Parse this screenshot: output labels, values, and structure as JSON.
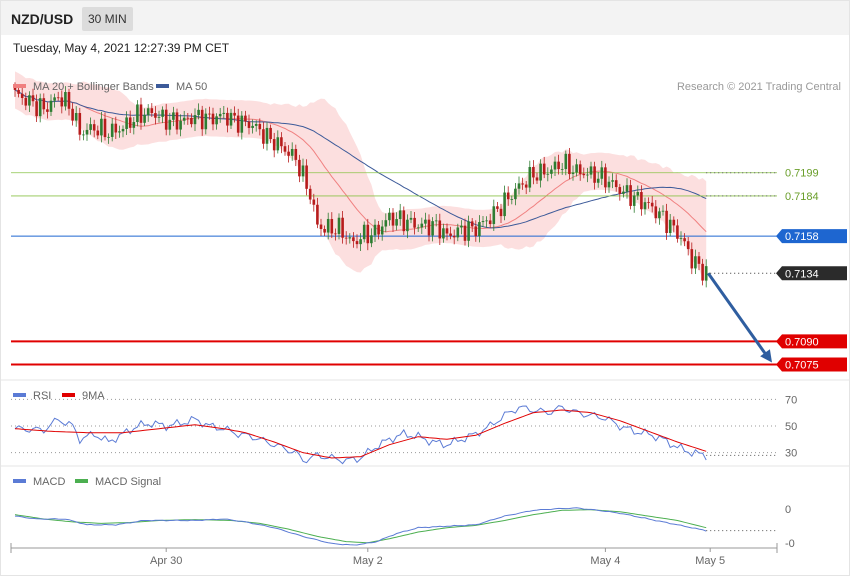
{
  "header": {
    "symbol": "NZD/USD",
    "timeframe": "30 MIN",
    "datetime": "Tuesday, May 4, 2021 12:27:39 PM CET"
  },
  "colors": {
    "ma20": "#f08080",
    "ma50": "#3c5a99",
    "bands": "#fcd9d9",
    "bull": "#2e7d32",
    "bear": "#b71c1c",
    "green_line": "#8bc34a",
    "blue_line": "#1e66d0",
    "red_line": "#e00000",
    "arrow": "#2f5ea0",
    "rsi": "#5b7bd5",
    "rsi_ma": "#e00000",
    "macd": "#5b7bd5",
    "macd_signal": "#4caf50"
  },
  "chart_data": [
    {
      "type": "candlestick",
      "legend": [
        {
          "label": "MA 20 + Bollinger Bands",
          "color": "#f08080"
        },
        {
          "label": "MA 50",
          "color": "#3c5a99"
        }
      ],
      "credit": "Research © 2021 Trading Central",
      "x_ticks": [
        "Apr 30",
        "May 2",
        "May 4",
        "May 5"
      ],
      "ylim": [
        0.7065,
        0.7268
      ],
      "levels": [
        {
          "value": 0.7199,
          "label": "0.7199",
          "style": "green-thin"
        },
        {
          "value": 0.7184,
          "label": "0.7184",
          "style": "green-thin"
        },
        {
          "value": 0.7158,
          "label": "0.7158",
          "style": "blue"
        },
        {
          "value": 0.7134,
          "label": "0.7134",
          "style": "current"
        },
        {
          "value": 0.709,
          "label": "0.7090",
          "style": "red"
        },
        {
          "value": 0.7075,
          "label": "0.7075",
          "style": "red"
        }
      ],
      "forecast_arrow": {
        "from": 0.7134,
        "to": 0.7075
      },
      "close_anchors": [
        [
          0,
          0.725
        ],
        [
          4,
          0.7245
        ],
        [
          8,
          0.724
        ],
        [
          12,
          0.7248
        ],
        [
          14,
          0.7245
        ],
        [
          16,
          0.7238
        ],
        [
          18,
          0.7225
        ],
        [
          22,
          0.7228
        ],
        [
          26,
          0.7225
        ],
        [
          30,
          0.7228
        ],
        [
          34,
          0.7236
        ],
        [
          38,
          0.7238
        ],
        [
          42,
          0.7233
        ],
        [
          46,
          0.7232
        ],
        [
          50,
          0.7235
        ],
        [
          54,
          0.7234
        ],
        [
          58,
          0.7236
        ],
        [
          62,
          0.7232
        ],
        [
          66,
          0.723
        ],
        [
          70,
          0.7222
        ],
        [
          74,
          0.7216
        ],
        [
          78,
          0.7208
        ],
        [
          82,
          0.7185
        ],
        [
          84,
          0.7165
        ],
        [
          86,
          0.7163
        ],
        [
          90,
          0.7163
        ],
        [
          94,
          0.7153
        ],
        [
          96,
          0.7158
        ],
        [
          100,
          0.716
        ],
        [
          104,
          0.717
        ],
        [
          108,
          0.7168
        ],
        [
          112,
          0.7165
        ],
        [
          116,
          0.7165
        ],
        [
          118,
          0.7163
        ],
        [
          120,
          0.7158
        ],
        [
          124,
          0.7162
        ],
        [
          128,
          0.7163
        ],
        [
          132,
          0.717
        ],
        [
          136,
          0.718
        ],
        [
          140,
          0.719
        ],
        [
          144,
          0.7198
        ],
        [
          148,
          0.72
        ],
        [
          152,
          0.7205
        ],
        [
          156,
          0.72
        ],
        [
          160,
          0.7198
        ],
        [
          164,
          0.7195
        ],
        [
          168,
          0.7188
        ],
        [
          172,
          0.7183
        ],
        [
          176,
          0.7178
        ],
        [
          180,
          0.717
        ],
        [
          184,
          0.716
        ],
        [
          186,
          0.7153
        ],
        [
          188,
          0.7143
        ],
        [
          190,
          0.7138
        ],
        [
          192,
          0.7134
        ]
      ]
    },
    {
      "type": "line",
      "legend": [
        {
          "label": "RSI",
          "color": "#5b7bd5"
        },
        {
          "label": "9MA",
          "color": "#e00000"
        }
      ],
      "ylim": [
        20,
        80
      ],
      "levels": [
        70,
        50,
        30
      ],
      "level_labels": [
        "70",
        "50",
        "30"
      ],
      "series": [
        {
          "name": "RSI",
          "points": [
            [
              0,
              48
            ],
            [
              8,
              47
            ],
            [
              12,
              55
            ],
            [
              16,
              50
            ],
            [
              18,
              40
            ],
            [
              22,
              44
            ],
            [
              26,
              38
            ],
            [
              30,
              44
            ],
            [
              34,
              50
            ],
            [
              38,
              52
            ],
            [
              42,
              50
            ],
            [
              46,
              52
            ],
            [
              50,
              55
            ],
            [
              54,
              50
            ],
            [
              58,
              48
            ],
            [
              62,
              44
            ],
            [
              66,
              42
            ],
            [
              70,
              38
            ],
            [
              74,
              34
            ],
            [
              78,
              30
            ],
            [
              80,
              24
            ],
            [
              84,
              28
            ],
            [
              88,
              26
            ],
            [
              92,
              24
            ],
            [
              96,
              26
            ],
            [
              100,
              34
            ],
            [
              104,
              40
            ],
            [
              108,
              44
            ],
            [
              112,
              42
            ],
            [
              116,
              38
            ],
            [
              120,
              36
            ],
            [
              124,
              40
            ],
            [
              128,
              44
            ],
            [
              132,
              50
            ],
            [
              136,
              58
            ],
            [
              140,
              64
            ],
            [
              144,
              62
            ],
            [
              148,
              60
            ],
            [
              152,
              64
            ],
            [
              156,
              60
            ],
            [
              160,
              58
            ],
            [
              164,
              56
            ],
            [
              168,
              50
            ],
            [
              172,
              46
            ],
            [
              176,
              44
            ],
            [
              180,
              40
            ],
            [
              184,
              34
            ],
            [
              188,
              30
            ],
            [
              192,
              28
            ]
          ]
        },
        {
          "name": "9MA",
          "points": [
            [
              0,
              48
            ],
            [
              10,
              46
            ],
            [
              20,
              45
            ],
            [
              30,
              45
            ],
            [
              40,
              48
            ],
            [
              50,
              51
            ],
            [
              58,
              48
            ],
            [
              64,
              45
            ],
            [
              72,
              38
            ],
            [
              80,
              30
            ],
            [
              88,
              26
            ],
            [
              96,
              27
            ],
            [
              104,
              36
            ],
            [
              112,
              42
            ],
            [
              120,
              40
            ],
            [
              128,
              43
            ],
            [
              136,
              52
            ],
            [
              144,
              60
            ],
            [
              152,
              62
            ],
            [
              160,
              60
            ],
            [
              168,
              54
            ],
            [
              176,
              46
            ],
            [
              184,
              38
            ],
            [
              192,
              31
            ]
          ]
        }
      ]
    },
    {
      "type": "line",
      "legend": [
        {
          "label": "MACD",
          "color": "#5b7bd5"
        },
        {
          "label": "MACD Signal",
          "color": "#4caf50"
        }
      ],
      "ylim": [
        -1,
        1
      ],
      "level_labels": [
        "0",
        "-0"
      ],
      "series": [
        {
          "name": "MACD",
          "points": [
            [
              0,
              0.1
            ],
            [
              6,
              0.0
            ],
            [
              14,
              0.0
            ],
            [
              20,
              -0.2
            ],
            [
              28,
              -0.2
            ],
            [
              36,
              -0.05
            ],
            [
              44,
              -0.05
            ],
            [
              50,
              -0.05
            ],
            [
              58,
              0.0
            ],
            [
              64,
              -0.1
            ],
            [
              72,
              -0.3
            ],
            [
              80,
              -0.6
            ],
            [
              88,
              -0.85
            ],
            [
              94,
              -0.9
            ],
            [
              100,
              -0.8
            ],
            [
              106,
              -0.5
            ],
            [
              112,
              -0.3
            ],
            [
              120,
              -0.25
            ],
            [
              128,
              -0.2
            ],
            [
              136,
              0.1
            ],
            [
              144,
              0.3
            ],
            [
              150,
              0.35
            ],
            [
              156,
              0.38
            ],
            [
              162,
              0.3
            ],
            [
              168,
              0.2
            ],
            [
              176,
              0.0
            ],
            [
              184,
              -0.2
            ],
            [
              192,
              -0.4
            ]
          ]
        },
        {
          "name": "MACD Signal",
          "points": [
            [
              0,
              0.15
            ],
            [
              8,
              0.0
            ],
            [
              16,
              -0.1
            ],
            [
              24,
              -0.15
            ],
            [
              32,
              -0.12
            ],
            [
              40,
              -0.05
            ],
            [
              50,
              -0.02
            ],
            [
              60,
              -0.05
            ],
            [
              68,
              -0.15
            ],
            [
              76,
              -0.35
            ],
            [
              84,
              -0.6
            ],
            [
              92,
              -0.78
            ],
            [
              98,
              -0.82
            ],
            [
              104,
              -0.68
            ],
            [
              112,
              -0.45
            ],
            [
              120,
              -0.3
            ],
            [
              128,
              -0.22
            ],
            [
              136,
              -0.05
            ],
            [
              144,
              0.15
            ],
            [
              152,
              0.3
            ],
            [
              160,
              0.32
            ],
            [
              168,
              0.25
            ],
            [
              176,
              0.1
            ],
            [
              184,
              -0.05
            ],
            [
              192,
              -0.3
            ]
          ]
        }
      ]
    }
  ]
}
